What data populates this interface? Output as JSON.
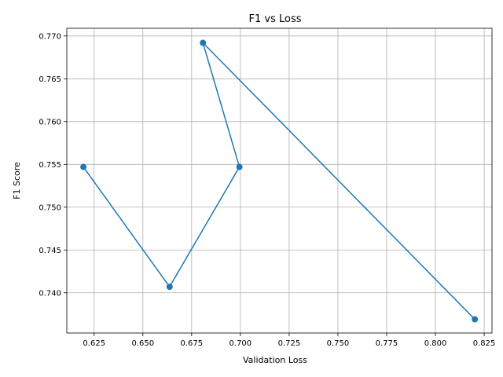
{
  "chart_data": {
    "type": "line",
    "title": "F1 vs Loss",
    "xlabel": "Validation Loss",
    "ylabel": "F1 Score",
    "xlim": [
      0.611,
      0.829
    ],
    "ylim": [
      0.7353,
      0.7709
    ],
    "x_ticks": [
      "0.625",
      "0.650",
      "0.675",
      "0.700",
      "0.725",
      "0.750",
      "0.775",
      "0.800",
      "0.825"
    ],
    "y_ticks": [
      "0.740",
      "0.745",
      "0.750",
      "0.755",
      "0.760",
      "0.765",
      "0.770"
    ],
    "grid": true,
    "series": [
      {
        "color": "#1f77b4",
        "marker": "circle",
        "points": [
          {
            "x": 0.6195,
            "y": 0.7547
          },
          {
            "x": 0.6637,
            "y": 0.7407
          },
          {
            "x": 0.6995,
            "y": 0.7547
          },
          {
            "x": 0.6808,
            "y": 0.7692
          },
          {
            "x": 0.8202,
            "y": 0.7369
          }
        ]
      }
    ]
  }
}
